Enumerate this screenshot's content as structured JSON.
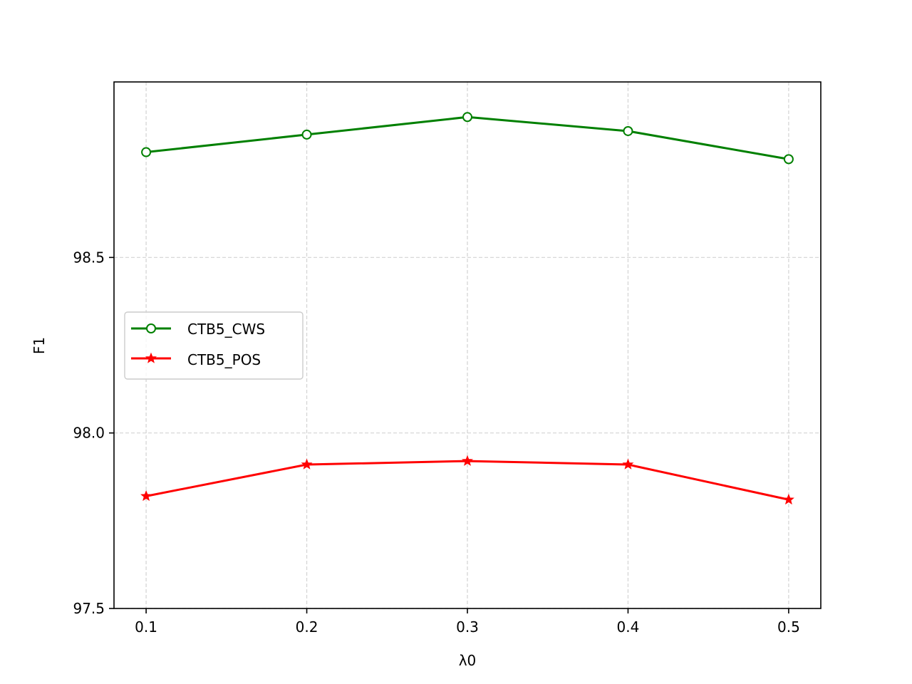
{
  "chart_data": {
    "type": "line",
    "x": [
      0.1,
      0.2,
      0.3,
      0.4,
      0.5
    ],
    "x_ticks": [
      "0.1",
      "0.2",
      "0.3",
      "0.4",
      "0.5"
    ],
    "y_ticks": [
      "97.5",
      "98.0",
      "98.5"
    ],
    "y_tick_values": [
      97.5,
      98.0,
      98.5
    ],
    "xlabel": "λ0",
    "ylabel": "F1",
    "xlim": [
      0.08,
      0.52
    ],
    "ylim": [
      97.5,
      99.0
    ],
    "grid": true,
    "legend_position": "center-left",
    "series": [
      {
        "name": "CTB5_CWS",
        "values": [
          98.8,
          98.85,
          98.9,
          98.86,
          98.78
        ],
        "color": "#008000",
        "marker": "open-circle"
      },
      {
        "name": "CTB5_POS",
        "values": [
          97.82,
          97.91,
          97.92,
          97.91,
          97.81
        ],
        "color": "#ff0000",
        "marker": "star"
      }
    ]
  }
}
